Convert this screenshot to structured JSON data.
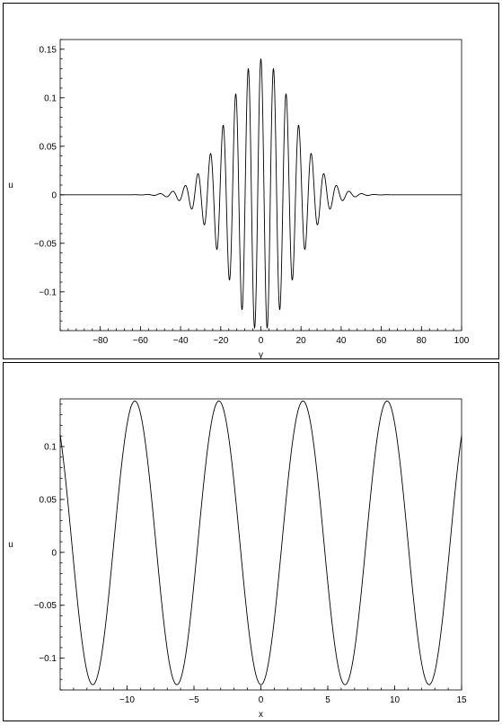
{
  "chart_data": [
    {
      "type": "line",
      "title": "",
      "xlabel": "y",
      "ylabel": "u",
      "xlim": [
        -100,
        100
      ],
      "ylim": [
        -0.14,
        0.16
      ],
      "x_ticks": [
        -80,
        -60,
        -40,
        -20,
        0,
        20,
        40,
        60,
        80,
        100
      ],
      "x_tick_labels": [
        "−80",
        "−60",
        "−40",
        "−20",
        "0",
        "20",
        "40",
        "60",
        "80",
        "100"
      ],
      "y_ticks": [
        -0.1,
        -0.05,
        0,
        0.05,
        0.1,
        0.15
      ],
      "y_tick_labels": [
        "−0.1",
        "−0.05",
        "0",
        "0.05",
        "0.1",
        "0.15"
      ],
      "grid": false,
      "series": [
        {
          "model": "wave packet: u = A·exp(-(y/σ)^2)·cos(k·y + φ)",
          "amplitude": 0.14,
          "sigma": 23,
          "k": 1.0,
          "phase": 0.0,
          "offset": 0.0,
          "sample_range": [
            -100,
            100
          ]
        }
      ]
    },
    {
      "type": "line",
      "title": "",
      "xlabel": "x",
      "ylabel": "u",
      "xlim": [
        -15,
        15
      ],
      "ylim": [
        -0.13,
        0.145
      ],
      "x_ticks": [
        -10,
        -5,
        0,
        5,
        10,
        15
      ],
      "x_tick_labels": [
        "−10",
        "−5",
        "0",
        "5",
        "10",
        "15"
      ],
      "y_ticks": [
        -0.1,
        -0.05,
        0,
        0.05,
        0.1
      ],
      "y_tick_labels": [
        "−0.1",
        "−0.05",
        "0",
        "0.05",
        "0.1"
      ],
      "grid": false,
      "series": [
        {
          "model": "periodic wave: u = offset + A·cos(k·(x - x0))",
          "amplitude": 0.134,
          "offset": 0.009,
          "k": 1.0,
          "x0": -9.42,
          "sample_range": [
            -15,
            15
          ]
        }
      ]
    }
  ]
}
